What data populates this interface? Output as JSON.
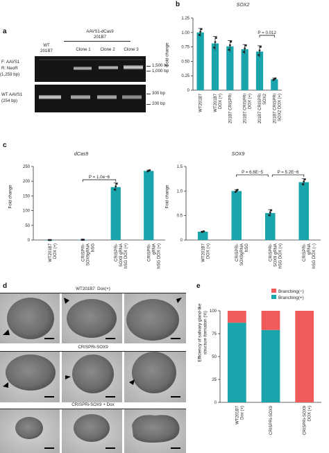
{
  "panels": {
    "a": {
      "label": "a",
      "construct": "AAVS1-dCas9",
      "construct_line": "201B7",
      "lanes": [
        "WT\n201B7",
        "Clone 1",
        "Clone 2",
        "Clone 3"
      ],
      "lane_wt": "WT",
      "lane_wt2": "201B7",
      "lane_c1": "Clone 1",
      "lane_c2": "Clone 2",
      "lane_c3": "Clone 3",
      "gel1_label_1": "F: AAVS1",
      "gel1_label_2": "R: NeoR",
      "gel1_label_3": "(1,259 bp)",
      "gel2_label_1": "WT AAVS1",
      "gel2_label_2": "(254 bp)",
      "marker_1500": "1,500 bp",
      "marker_1000": "1,000 bp",
      "marker_300": "300 bp",
      "marker_200": "200 bp"
    },
    "b": {
      "label": "b",
      "title": "SOX2",
      "ylabel": "Fold change",
      "pvalue": "P = 0.012"
    },
    "c": {
      "label": "c",
      "left_title": "dCas9",
      "right_title": "SOX9",
      "ylabel": "Fold change",
      "p1": "P = 1.0e−6",
      "p2": "P = 6.6E−5",
      "p3": "P = 5.2E−6"
    },
    "d": {
      "label": "d",
      "row1": "WT201B7  Dox(+)",
      "row2": "CRISPRi-SOX9",
      "row3": "CRISPRi-SOX9 + Dox"
    },
    "e": {
      "label": "e",
      "ylabel_1": "Efficiency of salivary gland-like",
      "ylabel_2": "structure formation (%)",
      "legend_neg": "Branching(−)",
      "legend_pos": "Branching(+)"
    }
  },
  "colors": {
    "teal": "#1aa5ad",
    "red": "#ef5a5a"
  },
  "chart_data": [
    {
      "id": "b",
      "type": "bar",
      "title": "SOX2",
      "ylabel": "Fold change",
      "ylim": [
        0,
        1.25
      ],
      "yticks": [
        "0",
        "0.25",
        "0.50",
        "0.75",
        "1.00",
        "1.25"
      ],
      "categories": [
        "WT201B7",
        "WT201B7 DOX (+)",
        "201B7 CRISPRi",
        "201B7 CRISPRi DOX (+)",
        "201B7 CRISPRi SOX2",
        "201B7 CRISPRi SOX2 DOX (+)"
      ],
      "values": [
        1.0,
        0.81,
        0.76,
        0.71,
        0.67,
        0.19
      ],
      "errors": [
        0.07,
        0.12,
        0.1,
        0.08,
        0.1,
        0.02
      ]
    },
    {
      "id": "c-left",
      "type": "bar",
      "title": "dCas9",
      "ylabel": "Fold change",
      "ylim": [
        0,
        250
      ],
      "yticks": [
        "0",
        "50",
        "100",
        "150",
        "200",
        "250"
      ],
      "categories": [
        "WT201B7 DOX (+)",
        "CRISPRi-SOX9gRNA hSG",
        "CRISPRi-SOX9 gRNA hSG DOX (+)",
        "CRISPRi-gRNA hSG DOX (+)"
      ],
      "values": [
        0,
        1,
        180,
        235
      ],
      "errors": [
        0,
        0,
        14,
        3
      ]
    },
    {
      "id": "c-right",
      "type": "bar",
      "title": "SOX9",
      "ylabel": "Fold change",
      "ylim": [
        0,
        1.5
      ],
      "yticks": [
        "0",
        "0.5",
        "1.0",
        "1.5"
      ],
      "categories": [
        "WT201B7 DOX (+)",
        "CRISPRi-SOX9gRNA hSG",
        "CRISPRi-SOX9 gRNA hSG DOX (+)",
        "CRISPRi-gRNA hSG DOX (−)"
      ],
      "values": [
        0.17,
        1.0,
        0.55,
        1.18
      ],
      "errors": [
        0.01,
        0.03,
        0.07,
        0.07
      ]
    },
    {
      "id": "e",
      "type": "bar",
      "stacked": true,
      "ylabel": "Efficiency of salivary gland-like structure formation (%)",
      "ylim": [
        0,
        100
      ],
      "yticks": [
        "0",
        "25",
        "50",
        "75",
        "100"
      ],
      "categories": [
        "WT201B7 Dox (+)",
        "CRISPRi-SOX9",
        "CRISPRi-SOX9 DOX (+)"
      ],
      "series": [
        {
          "name": "Branching(+)",
          "values": [
            87,
            79,
            0
          ]
        },
        {
          "name": "Branching(−)",
          "values": [
            13,
            21,
            100
          ]
        }
      ]
    }
  ]
}
